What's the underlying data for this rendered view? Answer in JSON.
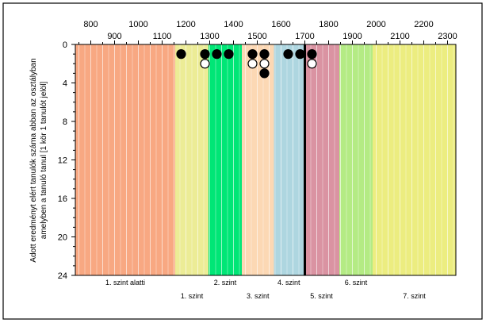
{
  "chart_data": {
    "type": "scatter",
    "xaxis": {
      "ticks_top": [
        800,
        900,
        1000,
        1100,
        1200,
        1300,
        1400,
        1500,
        1600,
        1700,
        1800,
        1900,
        2000,
        2100,
        2200,
        2300
      ],
      "range": [
        735,
        2335
      ]
    },
    "yaxis": {
      "ticks": [
        0,
        4,
        8,
        12,
        16,
        20,
        24
      ],
      "range": [
        0,
        24
      ],
      "inverted": true,
      "label_line1": "Adott eredményt elért tanulók száma abban az osztályban",
      "label_line2": "amelyben a tanuló tanul [1 kör 1 tanulót jelöl]"
    },
    "bands": [
      {
        "from": 735,
        "to": 1155,
        "color": "#f8a882",
        "label": "1. szint alatti",
        "row": 1
      },
      {
        "from": 1155,
        "to": 1295,
        "color": "#ecec96",
        "label": "1. szint",
        "row": 2
      },
      {
        "from": 1295,
        "to": 1435,
        "color": "#00e676",
        "label": "2. szint",
        "row": 1
      },
      {
        "from": 1435,
        "to": 1570,
        "color": "#fcd8b4",
        "label": "3. szint",
        "row": 2
      },
      {
        "from": 1570,
        "to": 1695,
        "color": "#aed6e0",
        "label": "4. szint",
        "row": 1
      },
      {
        "from": 1695,
        "to": 1845,
        "color": "#da93a2",
        "label": "5. szint",
        "row": 2
      },
      {
        "from": 1845,
        "to": 1985,
        "color": "#b4eb84",
        "label": "6. szint",
        "row": 1
      },
      {
        "from": 1985,
        "to": 2335,
        "color": "#eced80",
        "label": "7. szint",
        "row": 2
      }
    ],
    "reference_line": {
      "x": 1700,
      "color": "#000000"
    },
    "points": [
      {
        "x": 1180,
        "y": 1,
        "filled": true
      },
      {
        "x": 1280,
        "y": 1,
        "filled": true
      },
      {
        "x": 1280,
        "y": 2,
        "filled": false
      },
      {
        "x": 1330,
        "y": 1,
        "filled": true
      },
      {
        "x": 1380,
        "y": 1,
        "filled": true
      },
      {
        "x": 1480,
        "y": 1,
        "filled": true
      },
      {
        "x": 1480,
        "y": 2,
        "filled": false
      },
      {
        "x": 1530,
        "y": 1,
        "filled": true
      },
      {
        "x": 1530,
        "y": 2,
        "filled": false
      },
      {
        "x": 1530,
        "y": 3,
        "filled": true
      },
      {
        "x": 1630,
        "y": 1,
        "filled": true
      },
      {
        "x": 1680,
        "y": 1,
        "filled": true
      },
      {
        "x": 1730,
        "y": 1,
        "filled": true
      },
      {
        "x": 1730,
        "y": 2,
        "filled": false
      }
    ]
  }
}
